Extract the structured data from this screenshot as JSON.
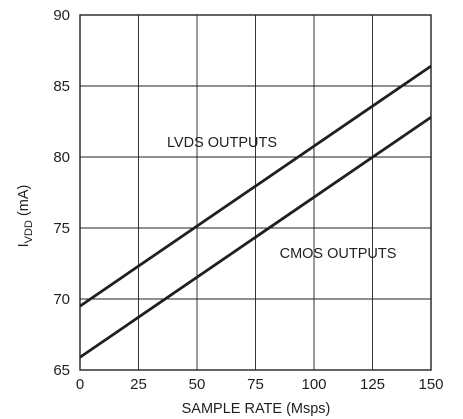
{
  "chart_data": {
    "type": "line",
    "title": "",
    "xlabel": "SAMPLE RATE (Msps)",
    "ylabel": {
      "base": "I",
      "subscript": "VDD",
      "suffix": " (mA)"
    },
    "xlim": [
      0,
      150
    ],
    "ylim": [
      65,
      90
    ],
    "xticks": [
      0,
      25,
      50,
      75,
      100,
      125,
      150
    ],
    "yticks": [
      65,
      70,
      75,
      80,
      85,
      90
    ],
    "grid": true,
    "legend": "none",
    "series": [
      {
        "name": "LVDS OUTPUTS",
        "x": [
          0,
          150
        ],
        "y": [
          69.5,
          86.4
        ]
      },
      {
        "name": "CMOS OUTPUTS",
        "x": [
          0,
          150
        ],
        "y": [
          65.9,
          82.8
        ]
      }
    ]
  }
}
